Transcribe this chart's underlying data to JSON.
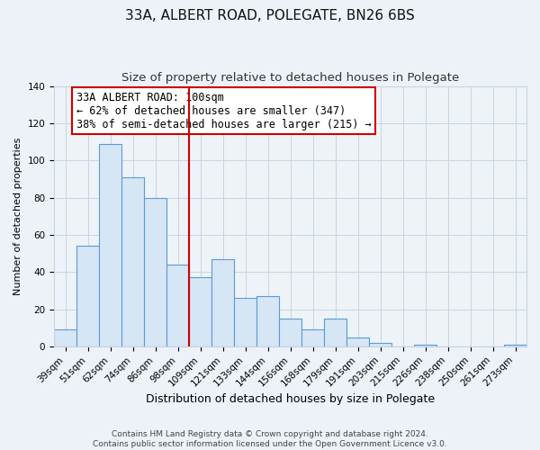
{
  "title": "33A, ALBERT ROAD, POLEGATE, BN26 6BS",
  "subtitle": "Size of property relative to detached houses in Polegate",
  "xlabel": "Distribution of detached houses by size in Polegate",
  "ylabel": "Number of detached properties",
  "categories": [
    "39sqm",
    "51sqm",
    "62sqm",
    "74sqm",
    "86sqm",
    "98sqm",
    "109sqm",
    "121sqm",
    "133sqm",
    "144sqm",
    "156sqm",
    "168sqm",
    "179sqm",
    "191sqm",
    "203sqm",
    "215sqm",
    "226sqm",
    "238sqm",
    "250sqm",
    "261sqm",
    "273sqm"
  ],
  "values": [
    9,
    54,
    109,
    91,
    80,
    44,
    37,
    47,
    26,
    27,
    15,
    9,
    15,
    5,
    2,
    0,
    1,
    0,
    0,
    0,
    1
  ],
  "bar_facecolor": "#d6e6f5",
  "bar_edgecolor": "#5b9bd5",
  "vline_x_index": 5,
  "vline_color": "#cc0000",
  "annotation_text": "33A ALBERT ROAD: 100sqm\n← 62% of detached houses are smaller (347)\n38% of semi-detached houses are larger (215) →",
  "annotation_box_facecolor": "#ffffff",
  "annotation_box_edgecolor": "#cc0000",
  "ylim": [
    0,
    140
  ],
  "yticks": [
    0,
    20,
    40,
    60,
    80,
    100,
    120,
    140
  ],
  "footer": "Contains HM Land Registry data © Crown copyright and database right 2024.\nContains public sector information licensed under the Open Government Licence v3.0.",
  "background_color": "#edf2f8",
  "plot_background_color": "#eef3f8",
  "grid_color": "#c8d4e0",
  "title_fontsize": 11,
  "subtitle_fontsize": 9.5,
  "xlabel_fontsize": 9,
  "ylabel_fontsize": 8,
  "tick_fontsize": 7.5,
  "annotation_fontsize": 8.5,
  "footer_fontsize": 6.5
}
